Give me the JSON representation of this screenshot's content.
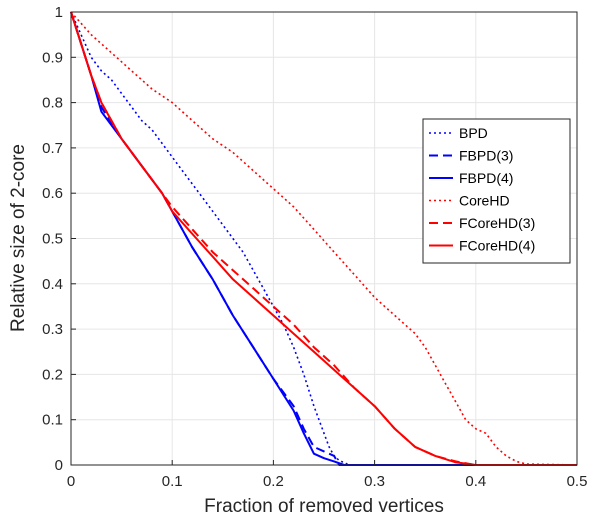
{
  "chart_data": {
    "type": "line",
    "xlabel": "Fraction of removed vertices",
    "ylabel": "Relative size of 2-core",
    "xlim": [
      0,
      0.5
    ],
    "ylim": [
      0,
      1
    ],
    "xticks": [
      0,
      0.1,
      0.2,
      0.3,
      0.4,
      0.5
    ],
    "yticks": [
      0,
      0.1,
      0.2,
      0.3,
      0.4,
      0.5,
      0.6,
      0.7,
      0.8,
      0.9,
      1
    ],
    "grid": true,
    "legend_position": "right",
    "series": [
      {
        "name": "BPD",
        "color": "#0000ff",
        "style": "dotted",
        "x": [
          0,
          0.01,
          0.02,
          0.03,
          0.04,
          0.05,
          0.06,
          0.07,
          0.08,
          0.09,
          0.1,
          0.11,
          0.12,
          0.13,
          0.14,
          0.15,
          0.16,
          0.17,
          0.18,
          0.19,
          0.2,
          0.21,
          0.22,
          0.23,
          0.24,
          0.25,
          0.255,
          0.26,
          0.265,
          0.27,
          0.275,
          0.5
        ],
        "y": [
          1,
          0.95,
          0.9,
          0.87,
          0.85,
          0.82,
          0.79,
          0.76,
          0.74,
          0.71,
          0.68,
          0.65,
          0.62,
          0.59,
          0.56,
          0.53,
          0.5,
          0.47,
          0.43,
          0.39,
          0.35,
          0.31,
          0.26,
          0.2,
          0.13,
          0.07,
          0.04,
          0.02,
          0.01,
          0.005,
          0,
          0
        ]
      },
      {
        "name": "FBPD(3)",
        "color": "#0000ff",
        "style": "dashed",
        "x": [
          0,
          0.01,
          0.02,
          0.03,
          0.05,
          0.07,
          0.09,
          0.1,
          0.12,
          0.14,
          0.16,
          0.18,
          0.2,
          0.22,
          0.23,
          0.24,
          0.25,
          0.26,
          0.265,
          0.5
        ],
        "y": [
          1,
          0.93,
          0.86,
          0.79,
          0.72,
          0.66,
          0.6,
          0.56,
          0.48,
          0.41,
          0.33,
          0.26,
          0.19,
          0.13,
          0.08,
          0.04,
          0.03,
          0.02,
          0,
          0
        ]
      },
      {
        "name": "FBPD(4)",
        "color": "#0000ff",
        "style": "solid",
        "x": [
          0,
          0.01,
          0.02,
          0.03,
          0.05,
          0.07,
          0.09,
          0.1,
          0.12,
          0.14,
          0.16,
          0.18,
          0.2,
          0.22,
          0.23,
          0.24,
          0.25,
          0.26,
          0.27,
          0.5
        ],
        "y": [
          1,
          0.93,
          0.86,
          0.78,
          0.72,
          0.66,
          0.6,
          0.56,
          0.48,
          0.41,
          0.33,
          0.26,
          0.19,
          0.12,
          0.07,
          0.025,
          0.015,
          0.008,
          0,
          0
        ]
      },
      {
        "name": "CoreHD",
        "color": "#ff0000",
        "style": "dotted",
        "x": [
          0,
          0.02,
          0.04,
          0.06,
          0.08,
          0.1,
          0.12,
          0.14,
          0.16,
          0.18,
          0.2,
          0.22,
          0.24,
          0.26,
          0.28,
          0.3,
          0.32,
          0.34,
          0.35,
          0.36,
          0.37,
          0.38,
          0.39,
          0.4,
          0.41,
          0.42,
          0.43,
          0.44,
          0.45,
          0.5
        ],
        "y": [
          1,
          0.95,
          0.91,
          0.87,
          0.83,
          0.8,
          0.76,
          0.72,
          0.69,
          0.65,
          0.61,
          0.57,
          0.52,
          0.47,
          0.42,
          0.37,
          0.33,
          0.29,
          0.26,
          0.22,
          0.18,
          0.14,
          0.1,
          0.08,
          0.07,
          0.04,
          0.02,
          0.008,
          0.002,
          0
        ]
      },
      {
        "name": "FCoreHD(3)",
        "color": "#ff0000",
        "style": "dashed",
        "x": [
          0,
          0.01,
          0.02,
          0.03,
          0.05,
          0.07,
          0.09,
          0.1,
          0.12,
          0.14,
          0.16,
          0.18,
          0.2,
          0.22,
          0.24,
          0.26,
          0.28,
          0.3,
          0.32,
          0.34,
          0.36,
          0.38,
          0.4,
          0.5
        ],
        "y": [
          1,
          0.93,
          0.86,
          0.8,
          0.72,
          0.66,
          0.6,
          0.57,
          0.52,
          0.47,
          0.43,
          0.39,
          0.35,
          0.31,
          0.26,
          0.22,
          0.17,
          0.13,
          0.08,
          0.04,
          0.02,
          0.008,
          0,
          0
        ]
      },
      {
        "name": "FCoreHD(4)",
        "color": "#ff0000",
        "style": "solid",
        "x": [
          0,
          0.01,
          0.02,
          0.03,
          0.05,
          0.07,
          0.09,
          0.1,
          0.12,
          0.14,
          0.16,
          0.18,
          0.2,
          0.22,
          0.24,
          0.26,
          0.28,
          0.3,
          0.32,
          0.34,
          0.36,
          0.38,
          0.4,
          0.5
        ],
        "y": [
          1,
          0.93,
          0.86,
          0.8,
          0.72,
          0.66,
          0.6,
          0.56,
          0.51,
          0.46,
          0.41,
          0.37,
          0.33,
          0.29,
          0.25,
          0.21,
          0.17,
          0.13,
          0.08,
          0.04,
          0.02,
          0.006,
          0,
          0
        ]
      }
    ]
  }
}
